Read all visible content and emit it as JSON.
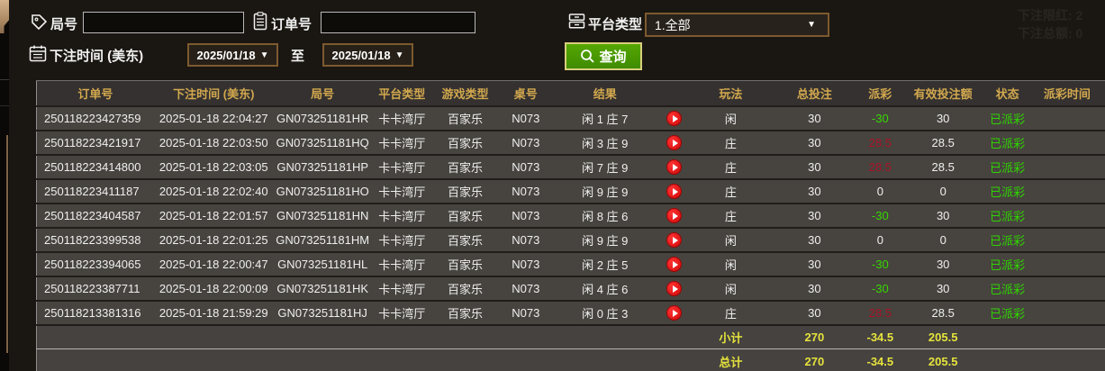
{
  "filters": {
    "round_label": "局号",
    "round_value": "",
    "order_label": "订单号",
    "order_value": "",
    "platform_label": "平台类型",
    "platform_value": "1.全部",
    "bet_time_label": "下注时间 (美东)",
    "date_from": "2025/01/18",
    "to_label": "至",
    "date_to": "2025/01/18",
    "query_label": "查询"
  },
  "ghost": {
    "line1": "下注限红: 2",
    "line2": "下注总额: 0"
  },
  "table": {
    "headers": [
      "订单号",
      "下注时间 (美东)",
      "局号",
      "平台类型",
      "游戏类型",
      "桌号",
      "结果",
      "",
      "玩法",
      "总投注",
      "派彩",
      "有效投注额",
      "状态",
      "派彩时间"
    ],
    "rows": [
      {
        "order": "250118223427359",
        "time": "2025-01-18 22:04:27",
        "round": "GN073251181HR",
        "platform": "卡卡湾厅",
        "game": "百家乐",
        "table_no": "N073",
        "result": "闲 1 庄 7",
        "play": "闲",
        "total": "30",
        "payout": "-30",
        "pc": "neg",
        "valid": "30",
        "status": "已派彩"
      },
      {
        "order": "250118223421917",
        "time": "2025-01-18 22:03:50",
        "round": "GN073251181HQ",
        "platform": "卡卡湾厅",
        "game": "百家乐",
        "table_no": "N073",
        "result": "闲 3 庄 9",
        "play": "庄",
        "total": "30",
        "payout": "28.5",
        "pc": "pos",
        "valid": "28.5",
        "status": "已派彩"
      },
      {
        "order": "250118223414800",
        "time": "2025-01-18 22:03:05",
        "round": "GN073251181HP",
        "platform": "卡卡湾厅",
        "game": "百家乐",
        "table_no": "N073",
        "result": "闲 7 庄 9",
        "play": "庄",
        "total": "30",
        "payout": "28.5",
        "pc": "pos",
        "valid": "28.5",
        "status": "已派彩"
      },
      {
        "order": "250118223411187",
        "time": "2025-01-18 22:02:40",
        "round": "GN073251181HO",
        "platform": "卡卡湾厅",
        "game": "百家乐",
        "table_no": "N073",
        "result": "闲 9 庄 9",
        "play": "庄",
        "total": "30",
        "payout": "0",
        "pc": "zero",
        "valid": "0",
        "status": "已派彩"
      },
      {
        "order": "250118223404587",
        "time": "2025-01-18 22:01:57",
        "round": "GN073251181HN",
        "platform": "卡卡湾厅",
        "game": "百家乐",
        "table_no": "N073",
        "result": "闲 8 庄 6",
        "play": "庄",
        "total": "30",
        "payout": "-30",
        "pc": "neg",
        "valid": "30",
        "status": "已派彩"
      },
      {
        "order": "250118223399538",
        "time": "2025-01-18 22:01:25",
        "round": "GN073251181HM",
        "platform": "卡卡湾厅",
        "game": "百家乐",
        "table_no": "N073",
        "result": "闲 9 庄 9",
        "play": "闲",
        "total": "30",
        "payout": "0",
        "pc": "zero",
        "valid": "0",
        "status": "已派彩"
      },
      {
        "order": "250118223394065",
        "time": "2025-01-18 22:00:47",
        "round": "GN073251181HL",
        "platform": "卡卡湾厅",
        "game": "百家乐",
        "table_no": "N073",
        "result": "闲 2 庄 5",
        "play": "闲",
        "total": "30",
        "payout": "-30",
        "pc": "neg",
        "valid": "30",
        "status": "已派彩"
      },
      {
        "order": "250118223387711",
        "time": "2025-01-18 22:00:09",
        "round": "GN073251181HK",
        "platform": "卡卡湾厅",
        "game": "百家乐",
        "table_no": "N073",
        "result": "闲 4 庄 6",
        "play": "闲",
        "total": "30",
        "payout": "-30",
        "pc": "neg",
        "valid": "30",
        "status": "已派彩"
      },
      {
        "order": "250118213381316",
        "time": "2025-01-18 21:59:29",
        "round": "GN073251181HJ",
        "platform": "卡卡湾厅",
        "game": "百家乐",
        "table_no": "N073",
        "result": "闲 0 庄 3",
        "play": "庄",
        "total": "30",
        "payout": "28.5",
        "pc": "pos",
        "valid": "28.5",
        "status": "已派彩"
      }
    ],
    "subtotal": {
      "label": "小计",
      "total": "270",
      "payout": "-34.5",
      "valid": "205.5"
    },
    "total": {
      "label": "总计",
      "total": "270",
      "payout": "-34.5",
      "valid": "205.5"
    }
  },
  "colors": {
    "win_red": "#a81126",
    "loss_green": "#35d800",
    "status_green": "#2fd400",
    "header_gold": "#d2a84e",
    "footer_yellow": "#e6e33c",
    "query_green": "#4a9a00",
    "select_border_brown": "#7d5a2f"
  }
}
